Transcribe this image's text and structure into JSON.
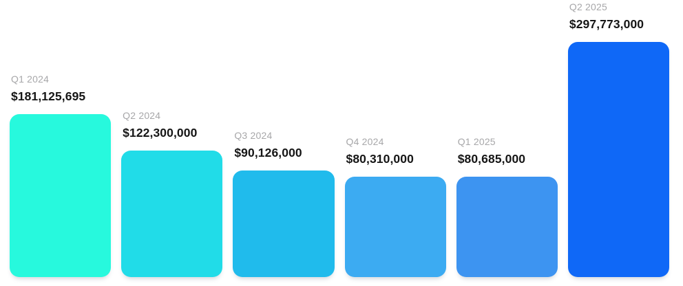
{
  "chart_data": {
    "type": "bar",
    "title": "",
    "xlabel": "",
    "ylabel": "",
    "categories": [
      "Q1 2024",
      "Q2 2024",
      "Q3 2024",
      "Q4 2024",
      "Q1 2025",
      "Q2 2025"
    ],
    "values": [
      181125695,
      122300000,
      90126000,
      80310000,
      80685000,
      297773000
    ],
    "value_labels": [
      "$181,125,695",
      "$122,300,000",
      "$90,126,000",
      "$80,310,000",
      "$80,685,000",
      "$297,773,000"
    ],
    "bar_colors": [
      "#27F9DD",
      "#21DCE8",
      "#20BBEC",
      "#3CABF2",
      "#3D94F1",
      "#0F68F7"
    ],
    "legend": [],
    "grid": false,
    "axes_visible": false,
    "labels_position": "above-bar-left"
  },
  "colors": {
    "background": "#FFFFFF",
    "quarter_label": "#A7A7A9",
    "value_label": "#161616"
  }
}
